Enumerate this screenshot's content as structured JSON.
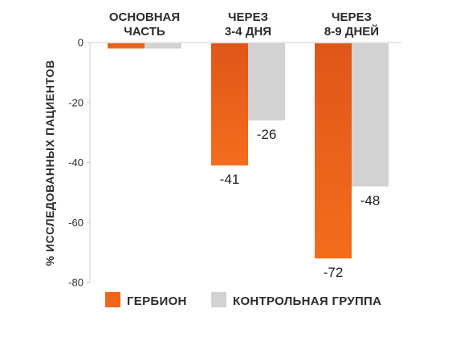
{
  "chart_data": {
    "type": "bar",
    "categories": [
      [
        "ОСНОВНАЯ",
        "ЧАСТЬ"
      ],
      [
        "ЧЕРЕЗ",
        "3-4 ДНЯ"
      ],
      [
        "ЧЕРЕЗ",
        "8-9 ДНЕЙ"
      ]
    ],
    "series": [
      {
        "name": "ГЕРБИОН",
        "values": [
          -2,
          -41,
          -72
        ],
        "labels": [
          "",
          "-41",
          "-72"
        ],
        "color": "#f26a1b",
        "color_dark": "#e2571a"
      },
      {
        "name": "КОНТРОЛЬНАЯ ГРУППА",
        "values": [
          -2,
          -26,
          -48
        ],
        "labels": [
          "",
          "-26",
          "-48"
        ],
        "color": "#d2d2d2"
      }
    ],
    "ylabel": "% ИССЛЕДОВАННЫХ ПАЦИЕНТОВ",
    "ylim": [
      -80,
      0
    ],
    "yticks": [
      0,
      -20,
      -40,
      -60,
      -80
    ],
    "grid": false,
    "legend": "bottom"
  }
}
